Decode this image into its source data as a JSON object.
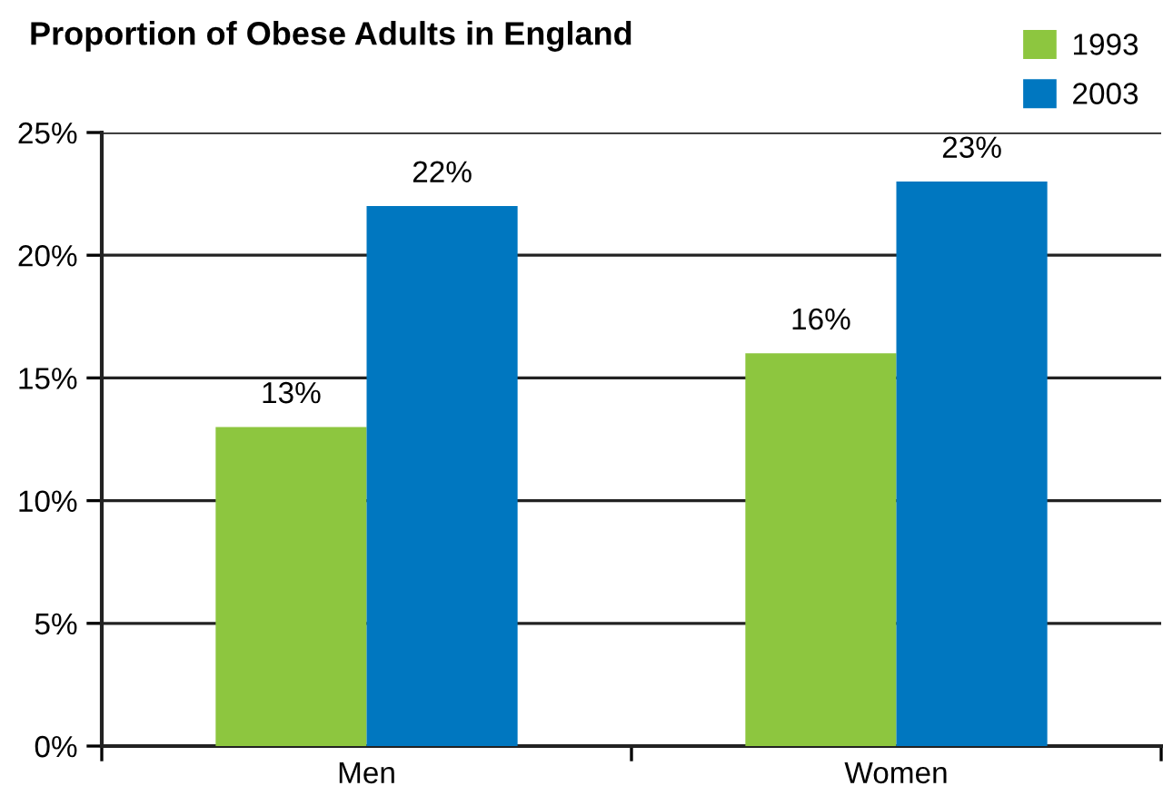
{
  "chart_data": {
    "type": "bar",
    "title": "Proportion of Obese Adults in England",
    "categories": [
      "Men",
      "Women"
    ],
    "series": [
      {
        "name": "1993",
        "color": "#8dc63f",
        "values": [
          13,
          16
        ],
        "value_labels": [
          "13%",
          "16%"
        ]
      },
      {
        "name": "2003",
        "color": "#0077c0",
        "values": [
          22,
          23
        ],
        "value_labels": [
          "22%",
          "23%"
        ]
      }
    ],
    "ylim": [
      0,
      25
    ],
    "yticks": [
      {
        "value": 0,
        "label": "0%"
      },
      {
        "value": 5,
        "label": "5%"
      },
      {
        "value": 10,
        "label": "10%"
      },
      {
        "value": 15,
        "label": "15%"
      },
      {
        "value": 20,
        "label": "20%"
      },
      {
        "value": 25,
        "label": "25%"
      }
    ],
    "grid": "y",
    "legend": "top right"
  }
}
